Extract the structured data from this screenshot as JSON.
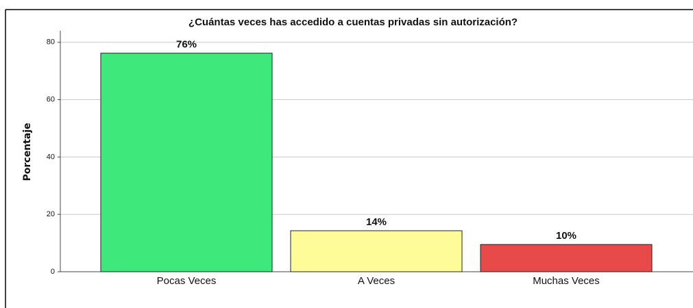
{
  "chart_data": {
    "type": "bar",
    "title": "¿Cuántas veces has accedido a cuentas privadas sin autorización?",
    "y_label": "Porcentaje",
    "categories": [
      "Pocas Veces",
      "A Veces",
      "Muchas Veces"
    ],
    "values": [
      76.2,
      14.3,
      9.5
    ],
    "value_labels": [
      "76%",
      "14%",
      "10%"
    ],
    "colors": [
      "#3fe87a",
      "#fdfc98",
      "#e84a4a"
    ],
    "ylim": [
      0,
      84
    ],
    "yticks": [
      0,
      20,
      40,
      60,
      80
    ],
    "grid": true
  }
}
